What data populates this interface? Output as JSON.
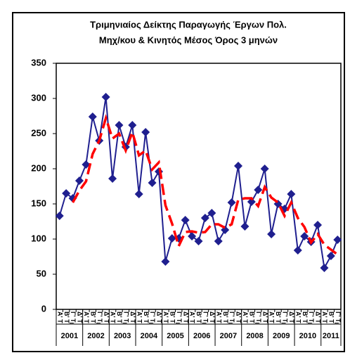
{
  "chart_data": {
    "type": "line",
    "title": [
      "Τριμηνιαίος Δείκτης Παραγωγής Έργων Πολ.",
      "Μηχ/κου & Κινητός Μέσος Όρος 3 μηνών"
    ],
    "categories": [
      "Α' Τρ.",
      "Β' Τρ.",
      "Γ' Τρ.",
      "Δ' Τρ.",
      "Α' Τρ.",
      "Β' Τρ.",
      "Γ' Τρ.",
      "Δ' Τρ.",
      "Α' Τρ.",
      "Β' Τρ.",
      "Γ' Τρ.",
      "Δ' Τρ.",
      "Α' Τρ.",
      "Β' Τρ.",
      "Γ' Τρ.",
      "Δ' Τρ.",
      "Α' Τρ.",
      "Β' Τρ.",
      "Γ' Τρ.",
      "Δ' Τρ.",
      "Α' Τρ.",
      "Β' Τρ.",
      "Γ' Τρ.",
      "Δ' Τρ.",
      "Α' Τρ.",
      "Β' Τρ.",
      "Γ' Τρ.",
      "Δ' Τρ.",
      "Α' Τρ.",
      "Β' Τρ.",
      "Γ' Τρ.",
      "Δ' Τρ.",
      "Α' Τρ.",
      "Β' Τρ.",
      "Γ' Τρ.",
      "Δ' Τρ.",
      "Α' Τρ.",
      "Β' Τρ.",
      "Γ' Τρ.",
      "Δ' Τρ.",
      "Α' Τρ.",
      "Β' Τρ.",
      "Γ' Τρ."
    ],
    "years": [
      "2001",
      "2002",
      "2003",
      "2004",
      "2005",
      "2006",
      "2007",
      "2008",
      "2009",
      "2010",
      "2011"
    ],
    "series": [
      {
        "color": "#1f1f8f",
        "line_style": "solid",
        "marker": "diamond",
        "values": [
          133,
          165,
          158,
          183,
          206,
          274,
          240,
          302,
          186,
          262,
          231,
          262,
          164,
          252,
          180,
          196,
          68,
          101,
          101,
          127,
          104,
          97,
          130,
          137,
          97,
          113,
          152,
          204,
          118,
          153,
          170,
          200,
          107,
          150,
          143,
          164,
          84,
          104,
          96,
          120,
          59,
          76,
          99
        ]
      },
      {
        "color": "#ff0000",
        "line_style": "dashed",
        "marker": "none",
        "values": [
          null,
          null,
          152,
          169,
          182,
          221,
          240,
          272,
          243,
          250,
          226,
          252,
          219,
          226,
          199,
          209,
          148,
          122,
          90,
          110,
          111,
          109,
          110,
          121,
          121,
          116,
          121,
          156,
          158,
          158,
          147,
          174,
          159,
          152,
          133,
          152,
          130,
          117,
          95,
          107,
          92,
          85,
          78
        ]
      }
    ],
    "ylim": [
      0,
      350
    ],
    "yticks": [
      0,
      50,
      100,
      150,
      200,
      250,
      300,
      350
    ],
    "grid": false
  }
}
